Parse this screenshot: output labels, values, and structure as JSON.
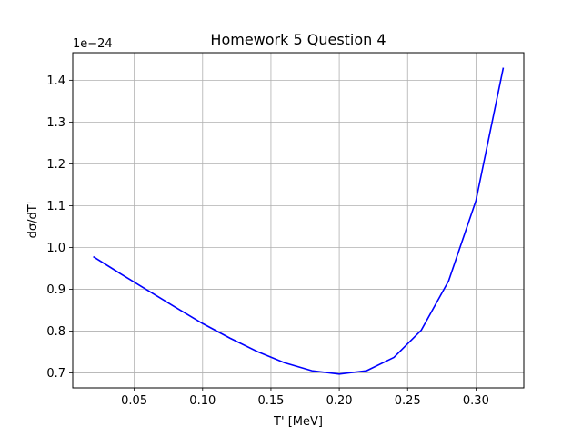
{
  "chart_data": {
    "type": "line",
    "title": "Homework 5 Question 4",
    "xlabel": "T' [MeV]",
    "ylabel": "dσ/dT'",
    "offset_text": "1e−24",
    "xlim": [
      0.005,
      0.335
    ],
    "ylim": [
      0.664,
      1.466
    ],
    "grid": true,
    "x_ticks": [
      0.05,
      0.1,
      0.15,
      0.2,
      0.25,
      0.3
    ],
    "x_tick_labels": [
      "0.05",
      "0.10",
      "0.15",
      "0.20",
      "0.25",
      "0.30"
    ],
    "y_ticks": [
      0.7,
      0.8,
      0.9,
      1.0,
      1.1,
      1.2,
      1.3,
      1.4
    ],
    "y_tick_labels": [
      "0.7",
      "0.8",
      "0.9",
      "1.0",
      "1.1",
      "1.2",
      "1.3",
      "1.4"
    ],
    "series": [
      {
        "color": "#0000ff",
        "x": [
          0.02,
          0.04,
          0.06,
          0.08,
          0.1,
          0.12,
          0.14,
          0.16,
          0.18,
          0.2,
          0.22,
          0.24,
          0.26,
          0.28,
          0.3,
          0.32
        ],
        "y": [
          0.978,
          0.937,
          0.897,
          0.857,
          0.818,
          0.783,
          0.751,
          0.724,
          0.705,
          0.697,
          0.705,
          0.737,
          0.802,
          0.92,
          1.112,
          1.43
        ]
      }
    ]
  }
}
